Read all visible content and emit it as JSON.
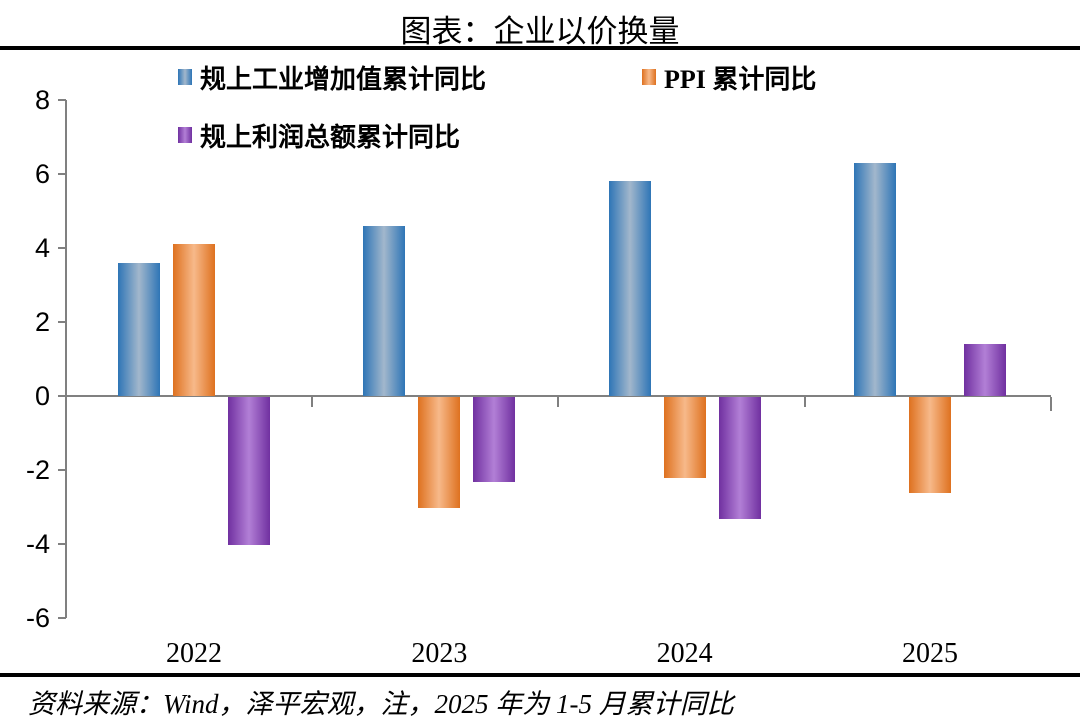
{
  "title": "图表：企业以价换量",
  "footer": {
    "text": "资料来源：Wind，泽平宏观，注，2025 年为 1-5 月累计同比"
  },
  "chart_data": {
    "type": "bar",
    "title": "图表：企业以价换量",
    "categories": [
      "2022",
      "2023",
      "2024",
      "2025"
    ],
    "series": [
      {
        "name": "规上工业增加值累计同比",
        "values": [
          3.6,
          4.6,
          5.8,
          6.3
        ],
        "color_edge": "#2E75B6",
        "color_center": "#A2B7CC"
      },
      {
        "name": "PPI 累计同比",
        "values": [
          4.1,
          -3.0,
          -2.2,
          -2.6
        ],
        "color_edge": "#DE711F",
        "color_center": "#F7B98A"
      },
      {
        "name": "规上利润总额累计同比",
        "values": [
          -4.0,
          -2.3,
          -3.3,
          1.4
        ],
        "color_edge": "#7030A0",
        "color_center": "#B27FD6"
      }
    ],
    "xlabel": "",
    "ylabel": "",
    "ylim": [
      -6,
      8
    ],
    "y_ticks": [
      8,
      6,
      4,
      2,
      0,
      -2,
      -4,
      -6
    ],
    "grid": false,
    "legend_position": "top",
    "axis_color": "#808080"
  }
}
